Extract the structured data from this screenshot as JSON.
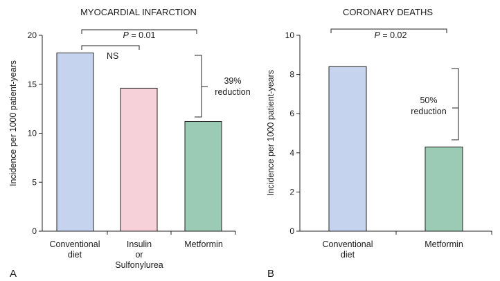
{
  "colors": {
    "conventional": "#c5d3ef",
    "insulin": "#f7d1da",
    "metformin": "#9ccbb5",
    "ink": "#1a1a1a"
  },
  "chart_data": [
    {
      "type": "bar",
      "panel_label": "A",
      "title": "MYOCARDIAL INFARCTION",
      "ylabel": "Incidence per 1000 patient-years",
      "ylim": [
        0,
        20
      ],
      "yticks": [
        "0",
        "5",
        "10",
        "15",
        "20"
      ],
      "categories": [
        [
          "Conventional",
          "diet"
        ],
        [
          "Insulin",
          "or",
          "Sulfonylurea"
        ],
        [
          "Metformin"
        ]
      ],
      "values": [
        18.2,
        14.6,
        11.2
      ],
      "annotations": {
        "p_prefix": "P",
        "p_value": " = 0.01",
        "ns": "NS",
        "reduction_pct": "39%",
        "reduction_word": "reduction"
      }
    },
    {
      "type": "bar",
      "panel_label": "B",
      "title": "CORONARY DEATHS",
      "ylabel": "Incidence per 1000 patient-years",
      "ylim": [
        0,
        10
      ],
      "yticks": [
        "0",
        "2",
        "4",
        "6",
        "8",
        "10"
      ],
      "categories": [
        [
          "Conventional",
          "diet"
        ],
        [
          "Metformin"
        ]
      ],
      "values": [
        8.4,
        4.3
      ],
      "annotations": {
        "p_prefix": "P",
        "p_value": " = 0.02",
        "reduction_pct": "50%",
        "reduction_word": "reduction"
      }
    }
  ]
}
